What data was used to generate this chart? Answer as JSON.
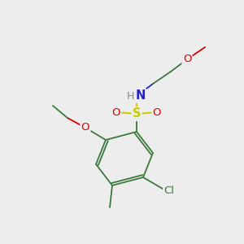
{
  "bg_color": "#ededee",
  "bond_color": "#3a7a3a",
  "bond_width": 1.2,
  "atom_colors": {
    "O": "#dd0000",
    "N": "#2222cc",
    "S": "#cccc00",
    "Cl": "#3a7a3a",
    "H": "#888888",
    "C": "#3a7a3a"
  },
  "font_size": 9,
  "title": ""
}
